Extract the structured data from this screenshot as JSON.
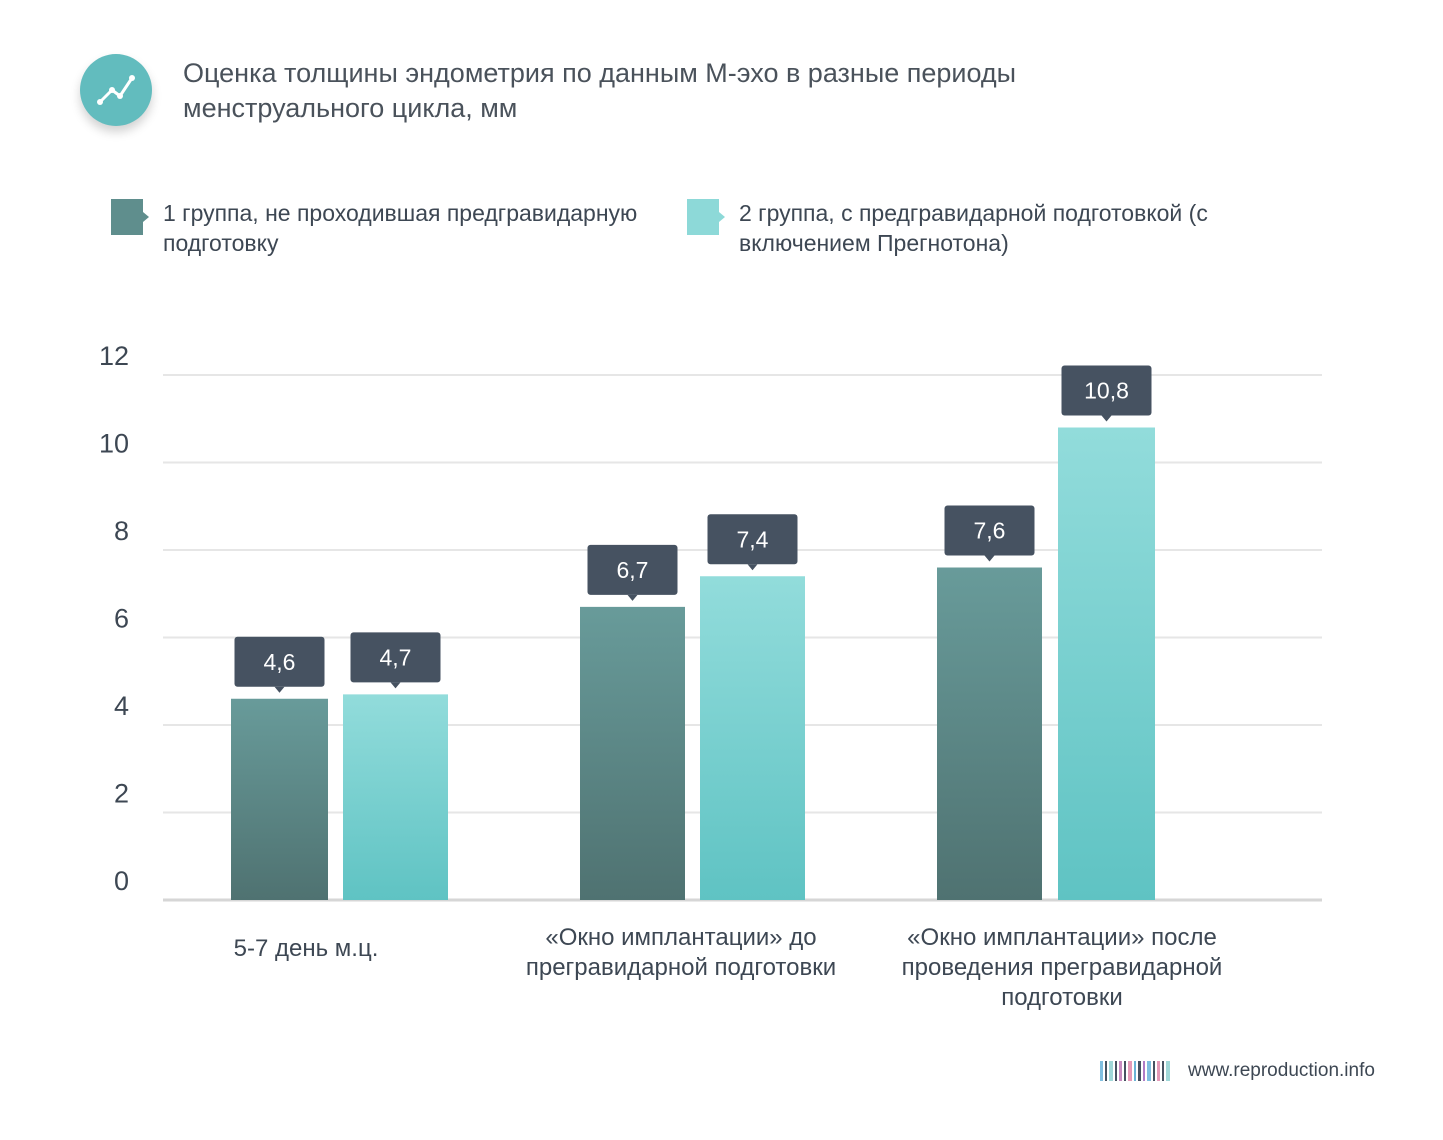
{
  "header": {
    "title_line1": "Оценка толщины эндометрия по данным М-эхо в разные периоды",
    "title_line2": "менструального цикла, мм",
    "icon": "chart-line-icon"
  },
  "colors": {
    "icon_bg": "#62bcbe",
    "series1": "#5f8e8d",
    "series1_dark": "#4f7271",
    "series2": "#8dd9d8",
    "series2_dark": "#5fc3c3",
    "label_box": "#465261",
    "grid": "#e6e6e6"
  },
  "legend": [
    {
      "label_line1": "1 группа, не проходившая предгравидарную",
      "label_line2": "подготовку"
    },
    {
      "label_line1": "2 группа, с предгравидарной подготовкой (с",
      "label_line2": "включением Прегнотона)"
    }
  ],
  "chart_data": {
    "type": "bar",
    "title": "Оценка толщины эндометрия по данным М-эхо в разные периоды менструального цикла, мм",
    "categories": [
      [
        "5-7 день м.ц."
      ],
      [
        "«Окно имплантации» до",
        "прегравидарной подготовки"
      ],
      [
        "«Окно имплантации» после",
        "проведения прегравидарной",
        "подготовки"
      ]
    ],
    "series": [
      {
        "name": "1 группа, не проходившая предгравидарную подготовку",
        "values": [
          4.6,
          6.7,
          7.6
        ],
        "labels": [
          "4,6",
          "6,7",
          "7,6"
        ]
      },
      {
        "name": "2 группа, с предгравидарной подготовкой (с включением Прегнотона)",
        "values": [
          4.7,
          7.4,
          10.8
        ],
        "labels": [
          "4,7",
          "7,4",
          "10,8"
        ]
      }
    ],
    "yticks": [
      "0",
      "2",
      "4",
      "6",
      "8",
      "10",
      "12"
    ],
    "ylim": [
      0,
      12
    ],
    "grid": true,
    "legend_position": "top"
  },
  "footer": {
    "site": "www.reproduction.info",
    "logo_icon": "barcode-logo-icon"
  }
}
